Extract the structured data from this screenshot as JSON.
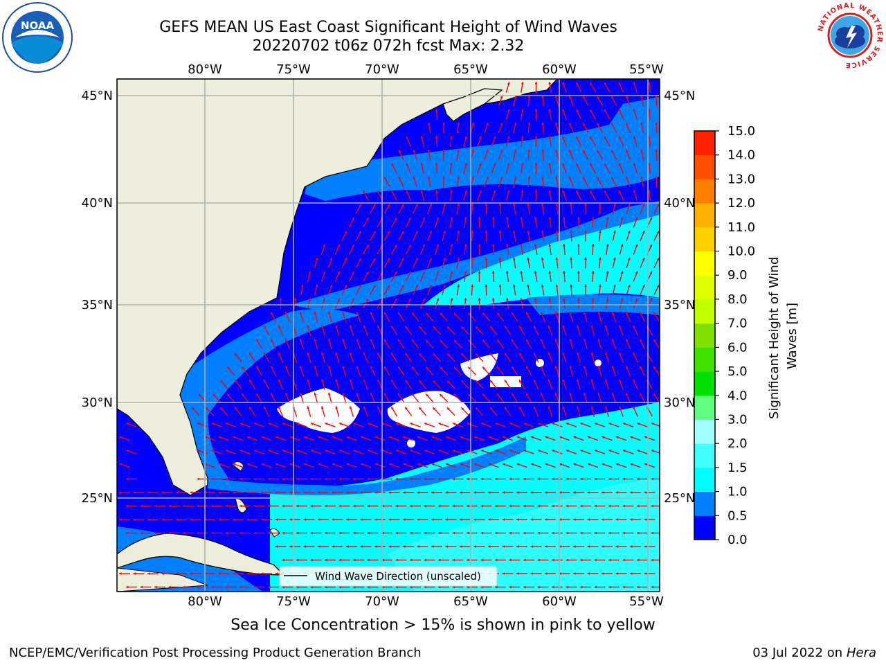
{
  "header": {
    "title_line1": "GEFS MEAN US East Coast Significant Height of Wind Waves",
    "title_line2": "20220702 t06z 072h fcst   Max: 2.32",
    "left_logo_text": "NOAA",
    "right_logo_text": "NATIONAL WEATHER SERVICE"
  },
  "map": {
    "lon_labels": [
      "80°W",
      "75°W",
      "70°W",
      "65°W",
      "60°W",
      "55°W"
    ],
    "lat_labels": [
      "45°N",
      "40°N",
      "35°N",
      "30°N",
      "25°N"
    ],
    "legend_label": "Wind Wave Direction (unscaled)",
    "colors": {
      "land": "#eeeedc",
      "c0": "#0000ff",
      "c05": "#0080ff",
      "c10": "#00ffff",
      "c15": "#40ffff",
      "vector": "#ff0000",
      "grid": "#b0b0b0"
    }
  },
  "colorbar": {
    "label": "Significant Height of Wind Waves [m]",
    "ticks": [
      "0.0",
      "0.5",
      "1.0",
      "1.5",
      "2.0",
      "3.0",
      "4.0",
      "5.0",
      "6.0",
      "7.0",
      "8.0",
      "9.0",
      "10.0",
      "11.0",
      "12.0",
      "13.0",
      "14.0",
      "15.0"
    ],
    "colors": [
      "#0000ff",
      "#0080ff",
      "#00ffff",
      "#40ffff",
      "#a0ffff",
      "#60ff80",
      "#00e000",
      "#40e000",
      "#80e000",
      "#c0ff00",
      "#e0ff00",
      "#ffff00",
      "#ffd000",
      "#ffb000",
      "#ff8000",
      "#ff5000",
      "#ff2000"
    ]
  },
  "subtitle": "Sea Ice Concentration > 15% is shown in pink to yellow",
  "footer": {
    "left": "NCEP/EMC/Verification Post Processing Product Generation Branch",
    "right_date": "03 Jul 2022 on ",
    "right_machine": "Hera"
  }
}
